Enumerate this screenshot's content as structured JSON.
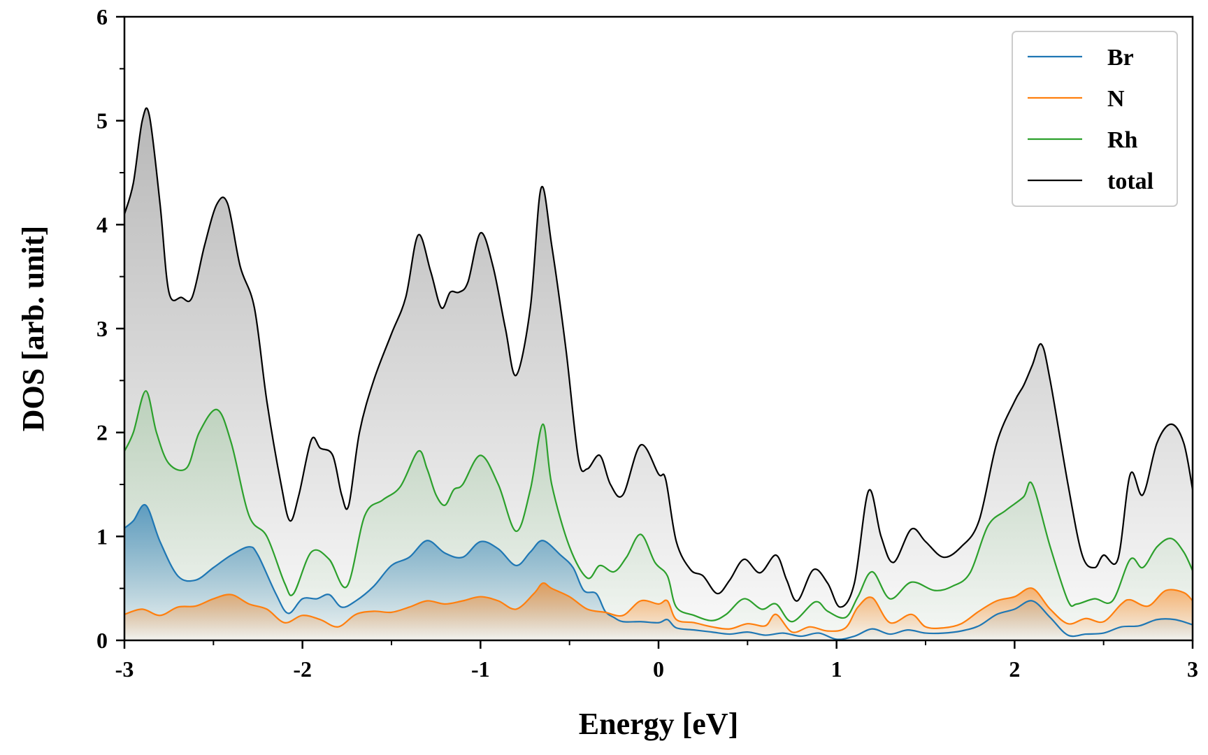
{
  "chart_data": {
    "type": "line",
    "title": "",
    "xlabel": "Energy [eV]",
    "ylabel": "DOS [arb. unit]",
    "xlim": [
      -3,
      3
    ],
    "ylim": [
      0,
      6
    ],
    "xticks": [
      -3,
      -2,
      -1,
      0,
      1,
      2,
      3
    ],
    "xtick_labels": [
      "-3",
      "-2",
      "-1",
      "0",
      "1",
      "2",
      "3"
    ],
    "yticks": [
      0,
      1,
      2,
      3,
      4,
      5,
      6
    ],
    "ytick_labels": [
      "0",
      "1",
      "2",
      "3",
      "4",
      "5",
      "6"
    ],
    "legend_position": "top-right",
    "fill": "gradient-under-curve",
    "series": [
      {
        "name": "Br",
        "color": "#1f77b4",
        "filled": true,
        "x": [
          -3.0,
          -2.95,
          -2.88,
          -2.8,
          -2.7,
          -2.6,
          -2.5,
          -2.4,
          -2.3,
          -2.25,
          -2.15,
          -2.08,
          -2.0,
          -1.92,
          -1.85,
          -1.78,
          -1.7,
          -1.6,
          -1.5,
          -1.4,
          -1.3,
          -1.2,
          -1.1,
          -1.0,
          -0.9,
          -0.8,
          -0.72,
          -0.65,
          -0.55,
          -0.48,
          -0.42,
          -0.35,
          -0.3,
          -0.25,
          -0.2,
          -0.1,
          0.0,
          0.05,
          0.1,
          0.2,
          0.3,
          0.4,
          0.5,
          0.6,
          0.7,
          0.8,
          0.9,
          1.0,
          1.1,
          1.2,
          1.3,
          1.4,
          1.5,
          1.6,
          1.7,
          1.8,
          1.9,
          2.0,
          2.1,
          2.2,
          2.3,
          2.4,
          2.5,
          2.6,
          2.7,
          2.8,
          2.9,
          3.0
        ],
        "values": [
          1.08,
          1.15,
          1.3,
          0.95,
          0.62,
          0.58,
          0.7,
          0.82,
          0.9,
          0.82,
          0.45,
          0.26,
          0.4,
          0.4,
          0.44,
          0.32,
          0.38,
          0.52,
          0.72,
          0.8,
          0.96,
          0.84,
          0.8,
          0.95,
          0.88,
          0.72,
          0.85,
          0.96,
          0.82,
          0.7,
          0.48,
          0.45,
          0.28,
          0.22,
          0.18,
          0.18,
          0.17,
          0.2,
          0.12,
          0.1,
          0.08,
          0.06,
          0.08,
          0.05,
          0.07,
          0.04,
          0.07,
          0.01,
          0.04,
          0.11,
          0.06,
          0.1,
          0.07,
          0.07,
          0.09,
          0.14,
          0.25,
          0.3,
          0.38,
          0.22,
          0.05,
          0.06,
          0.07,
          0.13,
          0.14,
          0.2,
          0.2,
          0.15
        ]
      },
      {
        "name": "N",
        "color": "#ff7f0e",
        "filled": true,
        "x": [
          -3.0,
          -2.9,
          -2.8,
          -2.7,
          -2.6,
          -2.5,
          -2.4,
          -2.3,
          -2.2,
          -2.1,
          -2.0,
          -1.9,
          -1.8,
          -1.7,
          -1.6,
          -1.5,
          -1.4,
          -1.3,
          -1.2,
          -1.1,
          -1.0,
          -0.9,
          -0.8,
          -0.7,
          -0.65,
          -0.6,
          -0.5,
          -0.4,
          -0.3,
          -0.2,
          -0.1,
          0.0,
          0.05,
          0.1,
          0.2,
          0.3,
          0.4,
          0.5,
          0.6,
          0.66,
          0.75,
          0.85,
          0.95,
          1.05,
          1.12,
          1.2,
          1.3,
          1.42,
          1.5,
          1.6,
          1.7,
          1.8,
          1.9,
          2.0,
          2.1,
          2.2,
          2.3,
          2.4,
          2.5,
          2.6,
          2.65,
          2.75,
          2.85,
          2.95,
          3.0
        ],
        "values": [
          0.25,
          0.3,
          0.24,
          0.32,
          0.33,
          0.4,
          0.44,
          0.35,
          0.3,
          0.17,
          0.24,
          0.2,
          0.13,
          0.25,
          0.28,
          0.27,
          0.32,
          0.38,
          0.35,
          0.38,
          0.42,
          0.38,
          0.3,
          0.45,
          0.55,
          0.5,
          0.42,
          0.3,
          0.27,
          0.24,
          0.38,
          0.35,
          0.38,
          0.2,
          0.17,
          0.13,
          0.11,
          0.16,
          0.14,
          0.25,
          0.08,
          0.13,
          0.09,
          0.12,
          0.32,
          0.41,
          0.17,
          0.25,
          0.13,
          0.12,
          0.16,
          0.28,
          0.38,
          0.42,
          0.5,
          0.3,
          0.16,
          0.21,
          0.18,
          0.35,
          0.39,
          0.33,
          0.48,
          0.46,
          0.38
        ]
      },
      {
        "name": "Rh",
        "color": "#2ca02c",
        "filled": true,
        "x": [
          -3.0,
          -2.95,
          -2.88,
          -2.82,
          -2.75,
          -2.65,
          -2.58,
          -2.48,
          -2.4,
          -2.3,
          -2.2,
          -2.1,
          -2.05,
          -1.95,
          -1.85,
          -1.75,
          -1.65,
          -1.55,
          -1.45,
          -1.35,
          -1.3,
          -1.25,
          -1.2,
          -1.15,
          -1.1,
          -1.0,
          -0.9,
          -0.8,
          -0.72,
          -0.65,
          -0.6,
          -0.5,
          -0.4,
          -0.33,
          -0.25,
          -0.18,
          -0.1,
          -0.02,
          0.05,
          0.1,
          0.2,
          0.3,
          0.38,
          0.48,
          0.58,
          0.66,
          0.75,
          0.88,
          0.95,
          1.05,
          1.12,
          1.2,
          1.3,
          1.42,
          1.55,
          1.65,
          1.75,
          1.85,
          1.95,
          2.05,
          2.1,
          2.2,
          2.3,
          2.35,
          2.45,
          2.55,
          2.65,
          2.72,
          2.8,
          2.88,
          2.95,
          3.0
        ],
        "values": [
          1.82,
          2.0,
          2.4,
          2.0,
          1.7,
          1.66,
          2.0,
          2.22,
          1.9,
          1.2,
          1.0,
          0.55,
          0.45,
          0.85,
          0.78,
          0.52,
          1.2,
          1.35,
          1.48,
          1.82,
          1.65,
          1.4,
          1.3,
          1.45,
          1.5,
          1.78,
          1.5,
          1.05,
          1.45,
          2.08,
          1.5,
          0.9,
          0.6,
          0.72,
          0.66,
          0.8,
          1.02,
          0.75,
          0.62,
          0.32,
          0.24,
          0.19,
          0.25,
          0.4,
          0.3,
          0.35,
          0.18,
          0.37,
          0.28,
          0.22,
          0.42,
          0.66,
          0.4,
          0.56,
          0.48,
          0.52,
          0.65,
          1.1,
          1.25,
          1.38,
          1.5,
          0.9,
          0.38,
          0.35,
          0.4,
          0.38,
          0.78,
          0.7,
          0.9,
          0.98,
          0.85,
          0.67
        ]
      },
      {
        "name": "total",
        "color": "#000000",
        "filled": true,
        "x": [
          -3.0,
          -2.95,
          -2.9,
          -2.86,
          -2.8,
          -2.75,
          -2.68,
          -2.62,
          -2.55,
          -2.48,
          -2.42,
          -2.35,
          -2.27,
          -2.2,
          -2.12,
          -2.07,
          -2.02,
          -1.95,
          -1.9,
          -1.83,
          -1.78,
          -1.74,
          -1.68,
          -1.6,
          -1.5,
          -1.42,
          -1.35,
          -1.28,
          -1.22,
          -1.17,
          -1.12,
          -1.07,
          -1.0,
          -0.93,
          -0.86,
          -0.8,
          -0.72,
          -0.66,
          -0.6,
          -0.52,
          -0.45,
          -0.4,
          -0.33,
          -0.27,
          -0.2,
          -0.1,
          0.0,
          0.04,
          0.1,
          0.18,
          0.25,
          0.33,
          0.4,
          0.48,
          0.57,
          0.66,
          0.72,
          0.78,
          0.87,
          0.95,
          1.02,
          1.1,
          1.18,
          1.25,
          1.32,
          1.42,
          1.5,
          1.6,
          1.7,
          1.8,
          1.9,
          2.0,
          2.05,
          2.1,
          2.15,
          2.2,
          2.3,
          2.38,
          2.45,
          2.5,
          2.58,
          2.65,
          2.72,
          2.8,
          2.88,
          2.95,
          3.0
        ],
        "values": [
          4.1,
          4.4,
          5.0,
          5.05,
          4.2,
          3.35,
          3.3,
          3.3,
          3.8,
          4.2,
          4.2,
          3.6,
          3.2,
          2.3,
          1.5,
          1.15,
          1.4,
          1.93,
          1.85,
          1.78,
          1.4,
          1.3,
          2.0,
          2.5,
          2.95,
          3.3,
          3.9,
          3.55,
          3.2,
          3.35,
          3.35,
          3.45,
          3.92,
          3.6,
          3.0,
          2.55,
          3.2,
          4.35,
          3.8,
          2.8,
          1.75,
          1.65,
          1.78,
          1.5,
          1.4,
          1.88,
          1.6,
          1.55,
          0.95,
          0.68,
          0.62,
          0.45,
          0.58,
          0.78,
          0.65,
          0.82,
          0.58,
          0.38,
          0.68,
          0.55,
          0.32,
          0.55,
          1.44,
          1.0,
          0.75,
          1.07,
          0.95,
          0.8,
          0.9,
          1.15,
          1.9,
          2.3,
          2.45,
          2.65,
          2.85,
          2.5,
          1.5,
          0.82,
          0.7,
          0.82,
          0.78,
          1.6,
          1.4,
          1.9,
          2.08,
          1.9,
          1.45
        ]
      }
    ]
  }
}
